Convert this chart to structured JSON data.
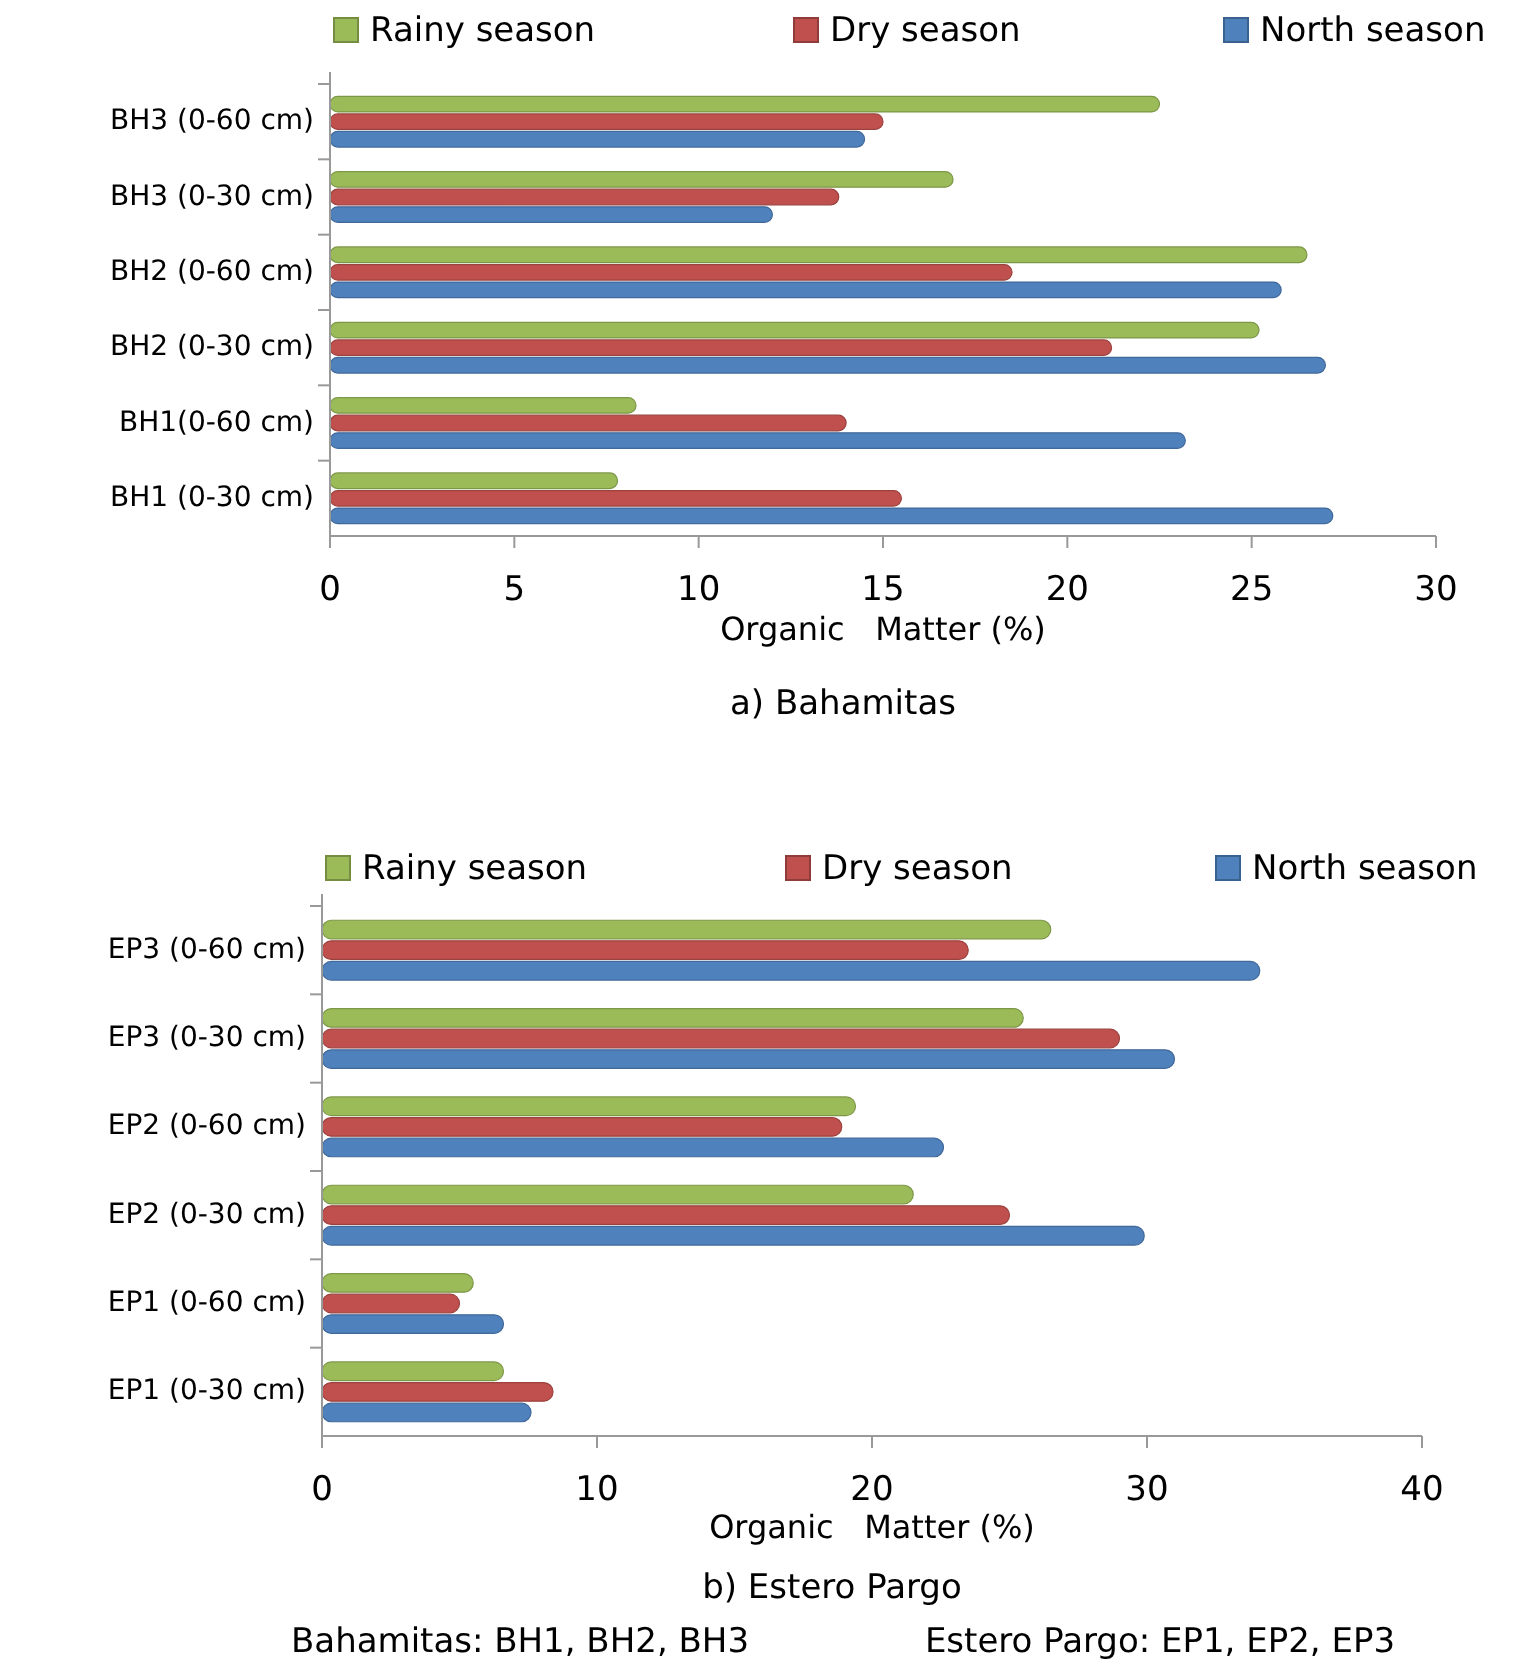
{
  "chart_data": [
    {
      "type": "bar",
      "orientation": "horizontal",
      "title": "a) Bahamitas",
      "xlabel": "Organic   Matter (%)",
      "categories": [
        "BH3 (0-60 cm)",
        "BH3 (0-30 cm)",
        "BH2 (0-60 cm)",
        "BH2 (0-30 cm)",
        "BH1(0-60 cm)",
        "BH1 (0-30 cm)"
      ],
      "series": [
        {
          "name": "Rainy season",
          "color": "#9bbb59",
          "values": [
            22.5,
            16.9,
            26.5,
            25.2,
            8.3,
            7.8
          ]
        },
        {
          "name": "Dry season",
          "color": "#c0504d",
          "values": [
            15,
            13.8,
            18.5,
            21.2,
            14,
            15.5
          ]
        },
        {
          "name": "North season",
          "color": "#4f81bd",
          "values": [
            14.5,
            12,
            25.8,
            27,
            23.2,
            27.2
          ]
        }
      ],
      "xlim": [
        0,
        30
      ],
      "xticks": [
        0,
        5,
        10,
        15,
        20,
        25,
        30
      ],
      "legend": "top",
      "grid": false
    },
    {
      "type": "bar",
      "orientation": "horizontal",
      "title": "b) Estero Pargo",
      "xlabel": "Organic   Matter (%)",
      "categories": [
        "EP3 (0-60 cm)",
        "EP3 (0-30 cm)",
        "EP2 (0-60 cm)",
        "EP2 (0-30 cm)",
        "EP1 (0-60 cm)",
        "EP1 (0-30 cm)"
      ],
      "series": [
        {
          "name": "Rainy season",
          "color": "#9bbb59",
          "values": [
            26.5,
            25.5,
            19.4,
            21.5,
            5.5,
            6.6
          ]
        },
        {
          "name": "Dry season",
          "color": "#c0504d",
          "values": [
            23.5,
            29,
            18.9,
            25,
            5,
            8.4
          ]
        },
        {
          "name": "North season",
          "color": "#4f81bd",
          "values": [
            34.1,
            31,
            22.6,
            29.9,
            6.6,
            7.6
          ]
        }
      ],
      "xlim": [
        0,
        40
      ],
      "xticks": [
        0,
        10,
        20,
        30,
        40
      ],
      "legend": "top",
      "grid": false,
      "annotations": [
        "Bahamitas: BH1, BH2, BH3",
        "Estero Pargo: EP1, EP2, EP3"
      ]
    }
  ]
}
